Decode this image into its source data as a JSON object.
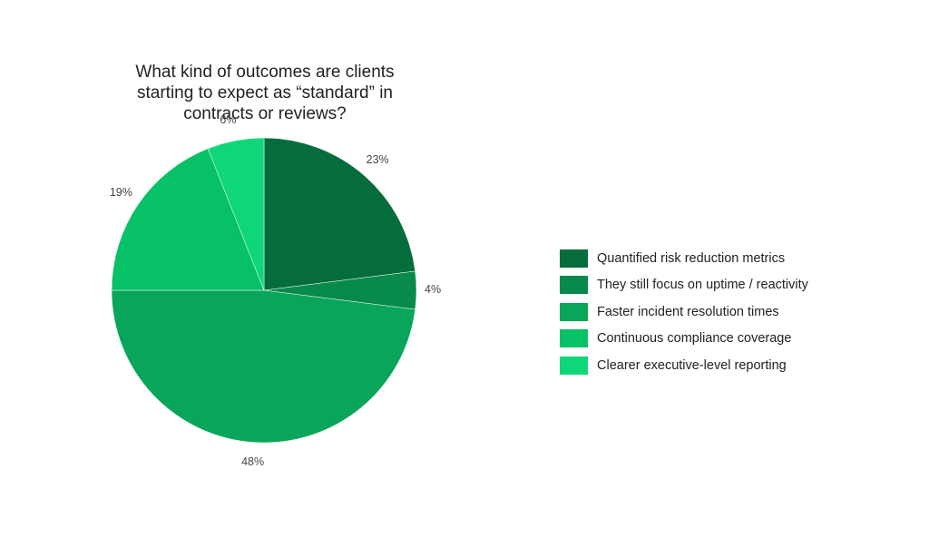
{
  "chart_data": {
    "type": "pie",
    "title": "What kind of outcomes are clients starting to expect as “standard” in contracts or reviews?",
    "categories": [
      "Quantified risk reduction metrics",
      "They still focus on uptime / reactivity",
      "Faster incident resolution times",
      "Continuous compliance coverage",
      "Clearer executive-level reporting"
    ],
    "values": [
      23,
      4,
      48,
      19,
      6
    ],
    "labels": [
      "23%",
      "4%",
      "48%",
      "19%",
      "6%"
    ],
    "colors": [
      "#046d3b",
      "#078a4b",
      "#09a55a",
      "#07c166",
      "#0fd678"
    ],
    "legend_position": "right"
  }
}
